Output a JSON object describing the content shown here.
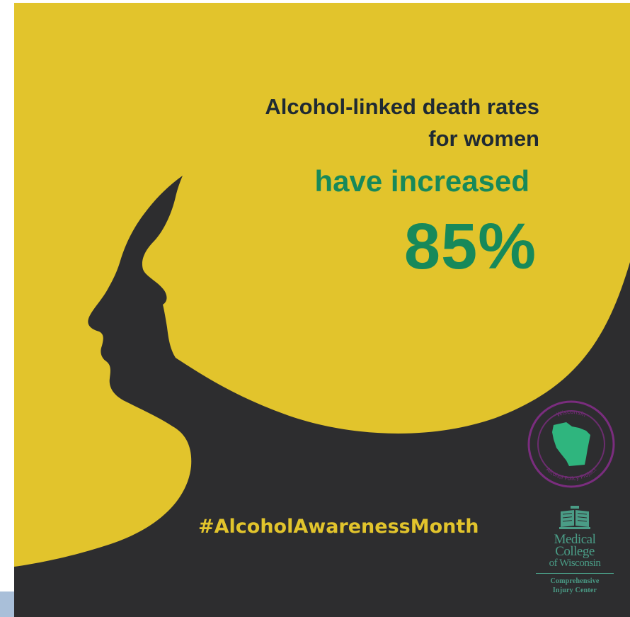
{
  "poster": {
    "headline_line1": "Alcohol-linked death rates",
    "headline_line2": "for women",
    "headline_line3": "have increased",
    "statistic": "85%",
    "hashtag": "#AlcoholAwarenessMonth"
  },
  "logos": {
    "wapp": {
      "top_text": "Wisconsin",
      "bottom_text": "Alcohol Policy Project"
    },
    "mcw": {
      "college_lines": [
        "Medical",
        "College",
        "of Wisconsin"
      ],
      "center_lines": [
        "Comprehensive",
        "Injury Center"
      ]
    }
  },
  "colors": {
    "yellow": "#e2c42c",
    "dark": "#2d2d2f",
    "headline_dark": "#1f2a33",
    "green": "#17895a",
    "logo_green": "#2fb57e",
    "logo_purple": "#7a2d7e",
    "logo_teal": "#4a9c86",
    "left_strip": "#a9bfd9"
  }
}
